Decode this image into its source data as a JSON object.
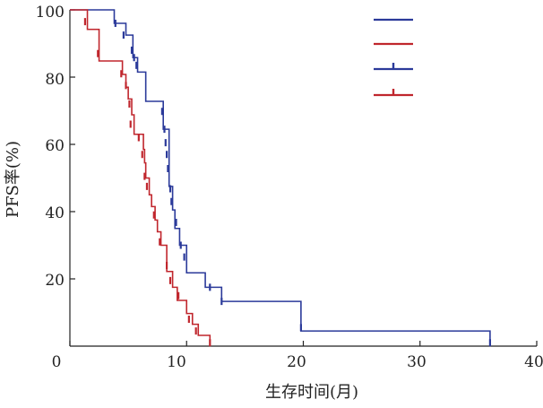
{
  "chart_data": {
    "type": "line",
    "title": "",
    "xlabel": "生存时间(月)",
    "ylabel": "PFS率(%)",
    "xlim": [
      0,
      40
    ],
    "ylim": [
      0,
      100
    ],
    "x_ticks": [
      "0",
      "10",
      "20",
      "30",
      "40"
    ],
    "y_ticks": [
      "20",
      "40",
      "60",
      "80",
      "100"
    ],
    "grid": false,
    "legend": {
      "position": "top-right",
      "entries": [
        {
          "color": "#2b3a9a",
          "marker": "line"
        },
        {
          "color": "#c0262d",
          "marker": "line"
        },
        {
          "color": "#2b3a9a",
          "marker": "line-with-censor-tick"
        },
        {
          "color": "#c0262d",
          "marker": "line-with-censor-tick"
        }
      ]
    },
    "series": [
      {
        "color": "#2b3a9a",
        "step": true,
        "points": [
          [
            1.2,
            100
          ],
          [
            3.8,
            96
          ],
          [
            4.8,
            92.5
          ],
          [
            5.4,
            85.8
          ],
          [
            5.8,
            81.5
          ],
          [
            6.5,
            72.8
          ],
          [
            8.0,
            64.5
          ],
          [
            8.5,
            47.5
          ],
          [
            8.8,
            40.5
          ],
          [
            9.0,
            35.0
          ],
          [
            9.4,
            30.0
          ],
          [
            10.0,
            21.8
          ],
          [
            11.6,
            17.5
          ],
          [
            13.0,
            13.3
          ],
          [
            19.8,
            4.5
          ],
          [
            36.0,
            0
          ]
        ],
        "censored": [
          [
            3.9,
            96
          ],
          [
            4.6,
            92.5
          ],
          [
            5.3,
            88.0
          ],
          [
            5.5,
            85.8
          ],
          [
            5.7,
            83.5
          ],
          [
            7.9,
            69.8
          ],
          [
            8.1,
            64.5
          ],
          [
            8.2,
            60.5
          ],
          [
            8.3,
            57.0
          ],
          [
            8.4,
            52.8
          ],
          [
            8.6,
            46.8
          ],
          [
            8.7,
            43.0
          ],
          [
            9.1,
            36.8
          ],
          [
            9.5,
            30.0
          ],
          [
            9.8,
            26.5
          ],
          [
            12.0,
            17.5
          ],
          [
            13.0,
            13.3
          ],
          [
            19.8,
            5.5
          ],
          [
            36.0,
            1.0
          ]
        ]
      },
      {
        "color": "#c0262d",
        "step": true,
        "points": [
          [
            1.5,
            94.2
          ],
          [
            2.5,
            84.8
          ],
          [
            4.5,
            80.8
          ],
          [
            4.8,
            77.0
          ],
          [
            5.0,
            73.5
          ],
          [
            5.3,
            68.8
          ],
          [
            5.5,
            63.0
          ],
          [
            6.3,
            58.5
          ],
          [
            6.4,
            54.5
          ],
          [
            6.5,
            50.0
          ],
          [
            6.8,
            45.0
          ],
          [
            7.0,
            41.5
          ],
          [
            7.3,
            37.5
          ],
          [
            7.5,
            34.0
          ],
          [
            7.8,
            30.0
          ],
          [
            8.3,
            22.2
          ],
          [
            8.8,
            17.5
          ],
          [
            9.2,
            13.6
          ],
          [
            10.0,
            9.7
          ],
          [
            10.5,
            6.5
          ],
          [
            11.0,
            3.2
          ],
          [
            12.0,
            0
          ]
        ],
        "censored": [
          [
            1.3,
            96.5
          ],
          [
            2.4,
            87.0
          ],
          [
            4.4,
            81.0
          ],
          [
            4.8,
            77.5
          ],
          [
            5.1,
            72.0
          ],
          [
            5.2,
            66.0
          ],
          [
            5.9,
            62.0
          ],
          [
            6.2,
            57.0
          ],
          [
            6.4,
            50.5
          ],
          [
            6.6,
            47.5
          ],
          [
            7.2,
            39.0
          ],
          [
            7.7,
            31.0
          ],
          [
            8.3,
            24.0
          ],
          [
            8.6,
            19.5
          ],
          [
            9.3,
            15.0
          ],
          [
            10.2,
            8.0
          ],
          [
            10.8,
            4.5
          ],
          [
            12.0,
            1.0
          ]
        ]
      }
    ]
  }
}
